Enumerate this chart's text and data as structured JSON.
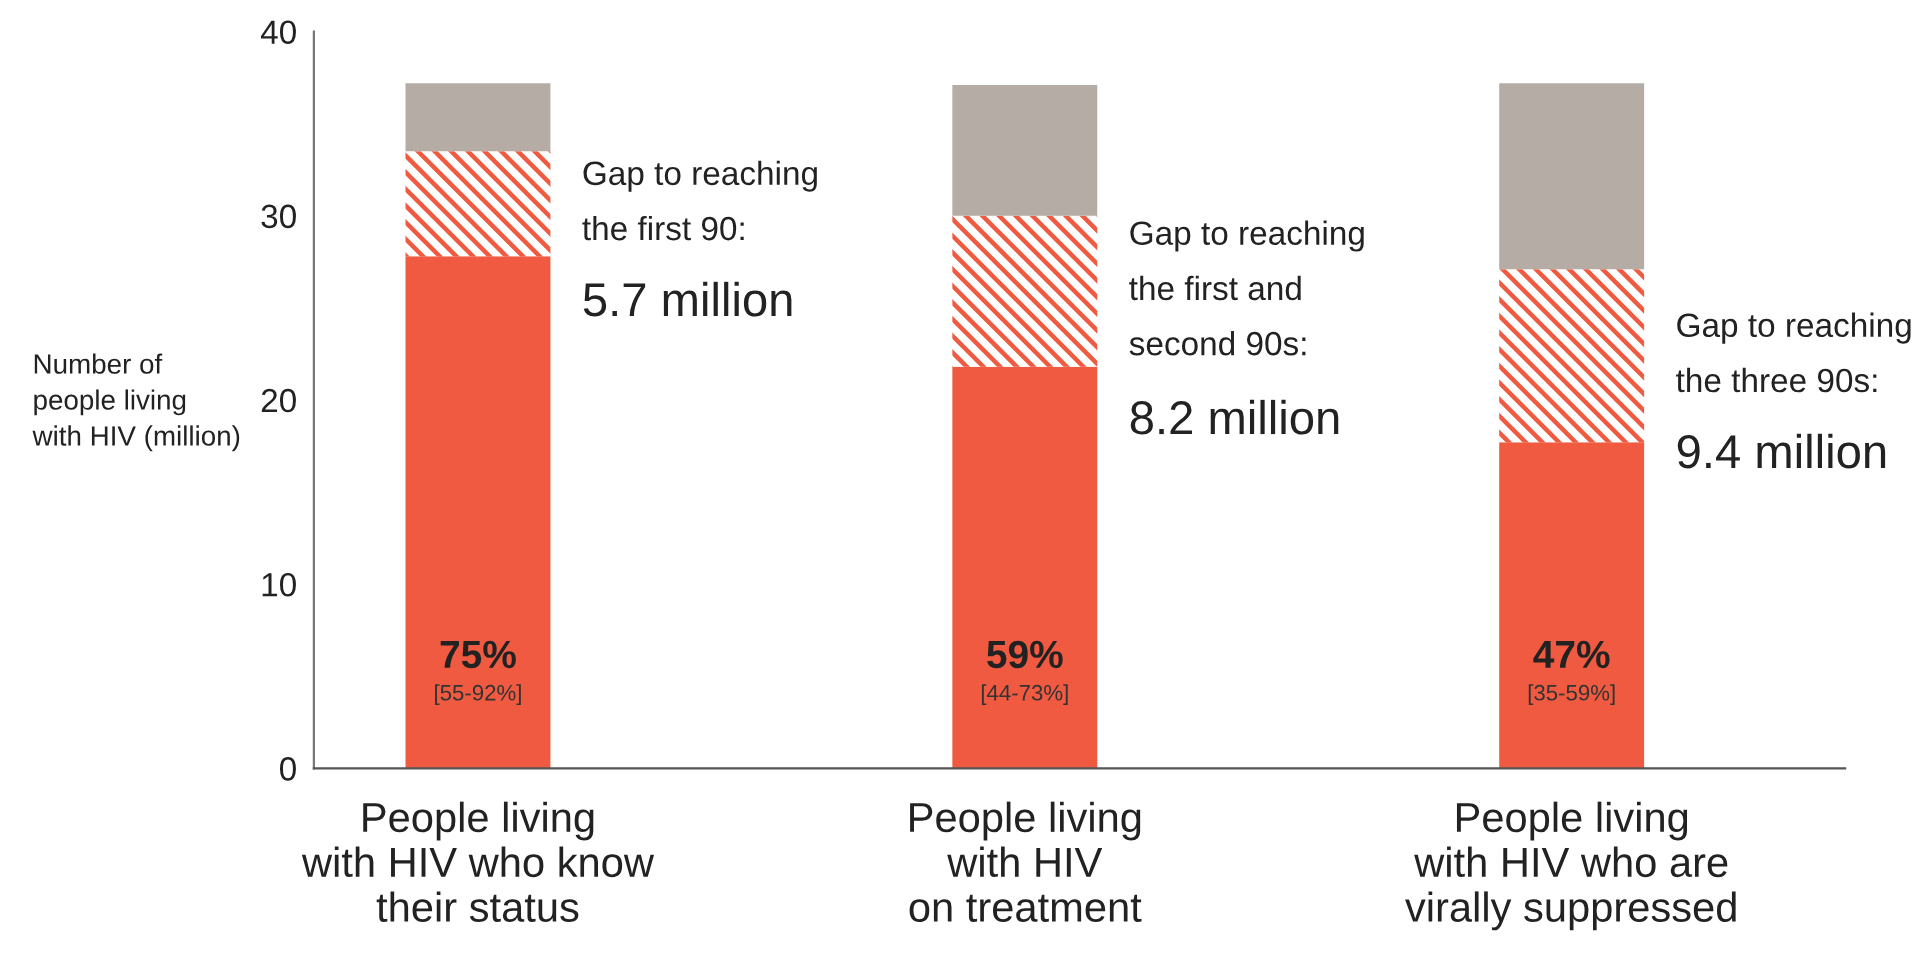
{
  "chart_data": {
    "type": "bar",
    "stacked": true,
    "ylabel": "Number of\npeople living\nwith HIV (million)",
    "categories": [
      "People living\nwith HIV who know\ntheir status",
      "People living\nwith HIV\non treatment",
      "People living\nwith HIV who are\nvirally suppressed"
    ],
    "series": [
      {
        "color": "#f05a40",
        "values": [
          27.8,
          21.8,
          17.7
        ]
      },
      {
        "color": "#f05a40",
        "values": [
          5.7,
          8.2,
          9.4
        ]
      },
      {
        "color": "#b5aca5",
        "values": [
          3.7,
          7.1,
          10.1
        ]
      }
    ],
    "ylim": [
      0,
      40
    ],
    "yticks": [
      0,
      10,
      20,
      30,
      40
    ],
    "grid": false,
    "legend": false,
    "annotations": [
      "75%",
      "[55-92%]",
      "Gap to reaching\nthe first 90:",
      "5.7 million",
      "59%",
      "[44-73%]",
      "Gap to reaching\nthe first and\nsecond 90s:",
      "8.2 million",
      "47%",
      "[35-59%]",
      "Gap to reaching\nthe three 90s:",
      "9.4 million"
    ]
  }
}
